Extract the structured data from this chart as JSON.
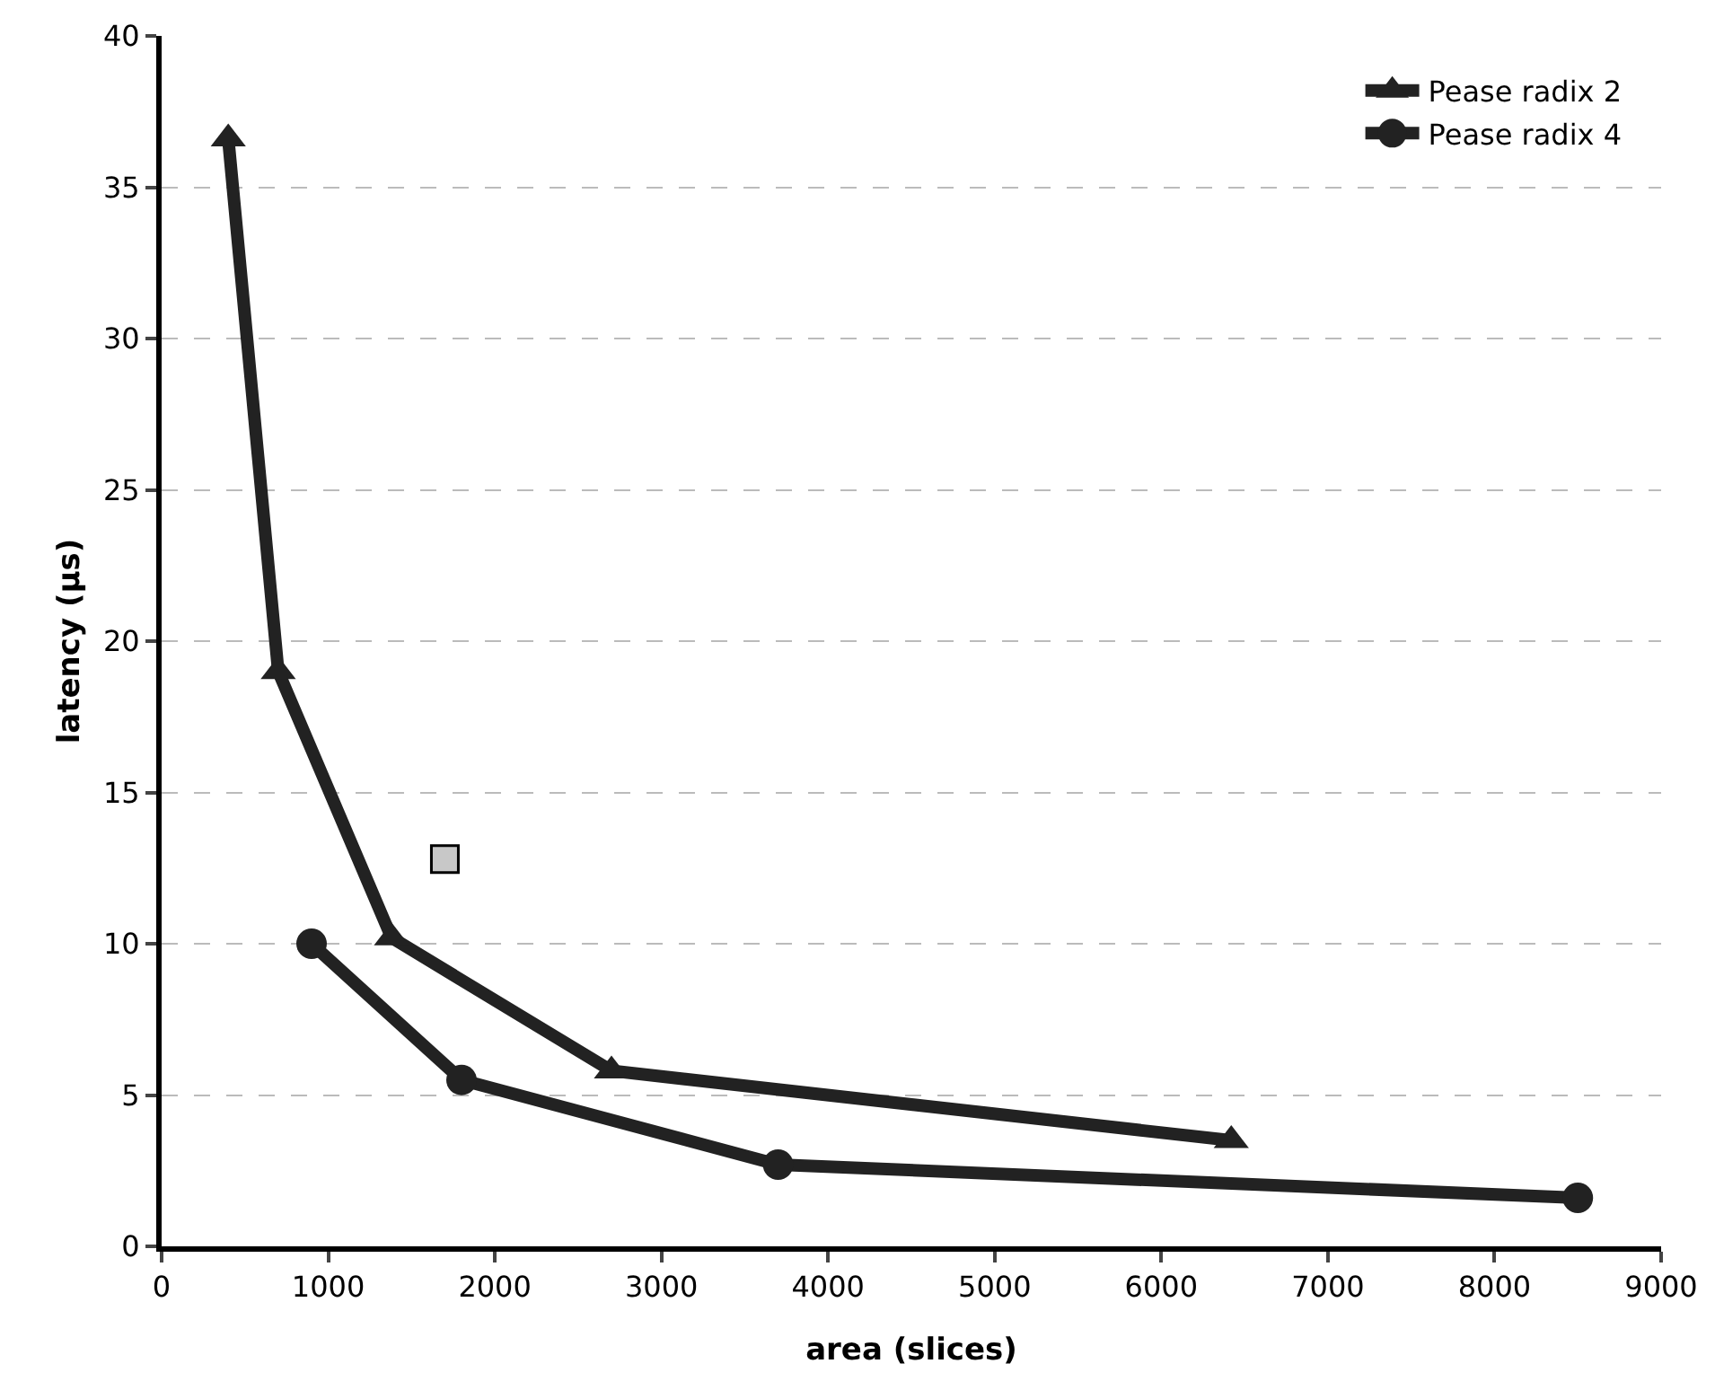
{
  "chart_data": {
    "type": "line",
    "xlabel": "area (slices)",
    "ylabel": "latency (µs)",
    "xlim": [
      0,
      9000
    ],
    "xticks": [
      0,
      1000,
      2000,
      3000,
      4000,
      5000,
      6000,
      7000,
      8000,
      9000
    ],
    "ylim": [
      0,
      40
    ],
    "yticks": [
      0,
      5,
      10,
      15,
      20,
      25,
      30,
      35,
      40
    ],
    "grid": "y",
    "legend": "top right",
    "series": [
      {
        "name": "Pease radix 2",
        "color": "#222222",
        "marker": "triangle",
        "x": [
          400,
          700,
          1380,
          2700,
          6420
        ],
        "values": [
          36.6,
          19,
          10.2,
          5.8,
          3.5
        ]
      },
      {
        "name": "Pease radix 4",
        "color": "#222222",
        "marker": "circle",
        "x": [
          900,
          1800,
          3700,
          8500
        ],
        "values": [
          10,
          5.5,
          2.7,
          1.6
        ]
      },
      {
        "type": "scatter",
        "color": "#c8c8c8",
        "marker": "square",
        "x": [
          1700
        ],
        "values": [
          12.8
        ]
      }
    ]
  }
}
